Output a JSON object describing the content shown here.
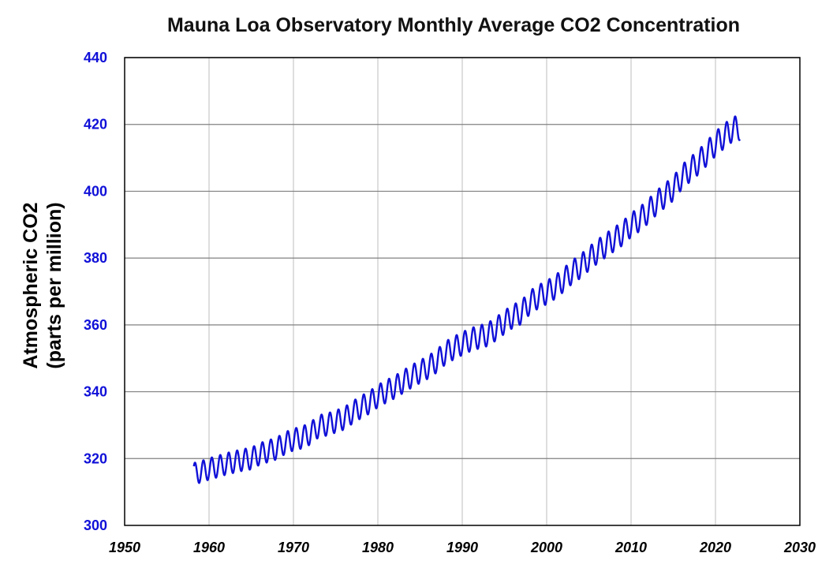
{
  "chart_data": {
    "type": "line",
    "title": "Mauna Loa Observatory Monthly Average CO2 Concentration",
    "ylabel_line1": "Atmospheric CO2",
    "ylabel_line2": "(parts per million)",
    "xlabel": "",
    "xlim": [
      1950,
      2030
    ],
    "ylim": [
      300,
      440
    ],
    "xticks": [
      "1950",
      "1960",
      "1970",
      "1980",
      "1990",
      "2000",
      "2010",
      "2020",
      "2030"
    ],
    "yticks": [
      "300",
      "320",
      "340",
      "360",
      "380",
      "400",
      "420",
      "440"
    ],
    "grid": {
      "vertical": true,
      "horizontal": true
    },
    "legend": "none",
    "colors": {
      "line": "#1010d8",
      "label": "#1010d8",
      "vgrid": "#c8c8c8",
      "hgrid": "#808080",
      "axis": "#000000"
    },
    "series": [
      {
        "x": [
          1958.2,
          1958.5,
          1959.0,
          1960.0,
          1961.0,
          1962.0,
          1963.0,
          1964.0,
          1965.0,
          1966.0,
          1967.0,
          1968.0,
          1969.0,
          1970.0,
          1971.0,
          1972.0,
          1973.0,
          1974.0,
          1975.0,
          1976.0,
          1977.0,
          1978.0,
          1979.0,
          1980.0,
          1981.0,
          1982.0,
          1983.0,
          1984.0,
          1985.0,
          1986.0,
          1987.0,
          1988.0,
          1989.0,
          1990.0,
          1991.0,
          1992.0,
          1993.0,
          1994.0,
          1995.0,
          1996.0,
          1997.0,
          1998.0,
          1999.0,
          2000.0,
          2001.0,
          2002.0,
          2003.0,
          2004.0,
          2005.0,
          2006.0,
          2007.0,
          2008.0,
          2009.0,
          2010.0,
          2011.0,
          2012.0,
          2013.0,
          2014.0,
          2015.0,
          2016.0,
          2017.0,
          2018.0,
          2019.0,
          2020.0,
          2021.0,
          2022.0,
          2022.6,
          2022.9
        ],
        "trend": [
          315.5,
          315.7,
          316.0,
          316.9,
          317.6,
          318.4,
          319.0,
          319.6,
          320.0,
          321.4,
          322.2,
          323.0,
          324.6,
          325.7,
          326.3,
          327.5,
          329.7,
          330.2,
          331.1,
          332.0,
          333.8,
          335.4,
          336.8,
          338.7,
          340.1,
          341.4,
          343.0,
          344.6,
          346.0,
          347.4,
          349.2,
          351.6,
          353.1,
          354.4,
          355.6,
          356.4,
          357.1,
          358.8,
          360.8,
          362.6,
          363.7,
          366.7,
          368.4,
          369.7,
          371.3,
          373.4,
          375.8,
          377.5,
          379.8,
          381.9,
          383.8,
          385.6,
          387.4,
          389.9,
          391.6,
          393.9,
          396.5,
          398.7,
          400.8,
          404.2,
          406.5,
          408.7,
          411.4,
          414.2,
          416.4,
          418.5,
          418.9,
          419.0
        ],
        "seasonal_amplitude": 3.2
      }
    ]
  }
}
